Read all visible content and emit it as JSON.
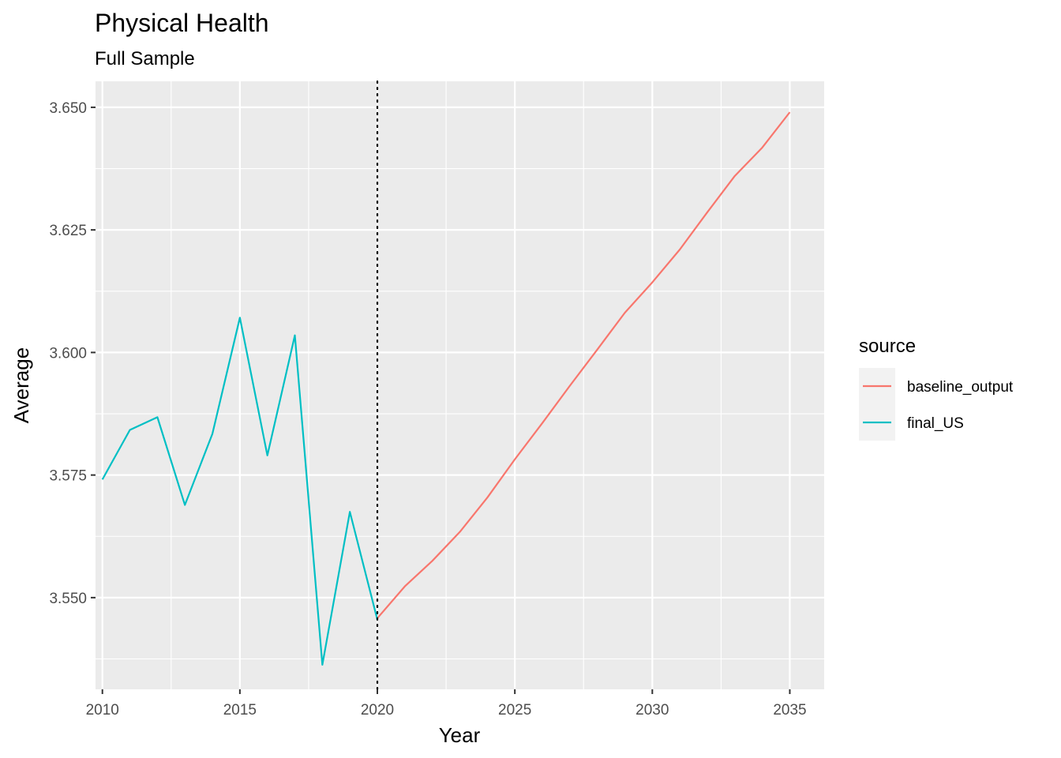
{
  "chart_data": {
    "type": "line",
    "title": "Physical Health",
    "subtitle": "Full Sample",
    "xlabel": "Year",
    "ylabel": "Average",
    "xlim": [
      2009.75,
      2036.25
    ],
    "ylim": [
      3.5313,
      3.6553
    ],
    "x_ticks": [
      2010,
      2015,
      2020,
      2025,
      2030,
      2035
    ],
    "y_ticks": [
      3.55,
      3.575,
      3.6,
      3.625,
      3.65
    ],
    "y_tick_labels": [
      "3.550",
      "3.575",
      "3.600",
      "3.625",
      "3.650"
    ],
    "grid": true,
    "vline": {
      "x": 2020,
      "style": "dotted",
      "color": "#000000"
    },
    "legend": {
      "title": "source",
      "position": "right"
    },
    "series": [
      {
        "name": "baseline_output",
        "color": "#F8766D",
        "x": [
          2020,
          2021,
          2022,
          2023,
          2024,
          2025,
          2026,
          2027,
          2028,
          2029,
          2030,
          2031,
          2032,
          2033,
          2034,
          2035
        ],
        "values": [
          3.5458,
          3.5523,
          3.5575,
          3.5634,
          3.5704,
          3.5782,
          3.5856,
          3.5932,
          3.6006,
          3.6081,
          3.6143,
          3.621,
          3.6286,
          3.636,
          3.6418,
          3.649
        ]
      },
      {
        "name": "final_US",
        "color": "#00BFC4",
        "x": [
          2010,
          2011,
          2012,
          2013,
          2014,
          2015,
          2016,
          2017,
          2018,
          2019,
          2020
        ],
        "values": [
          3.5741,
          3.5842,
          3.5868,
          3.5689,
          3.5834,
          3.6071,
          3.579,
          3.6035,
          3.5363,
          3.5675,
          3.5455
        ]
      }
    ]
  }
}
